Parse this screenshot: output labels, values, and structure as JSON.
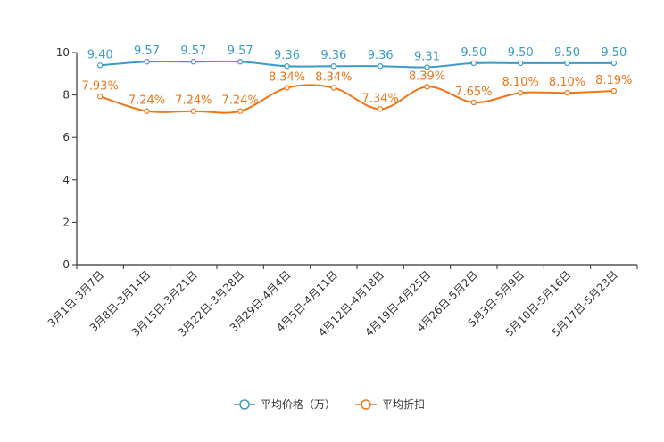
{
  "chart_data": {
    "type": "line",
    "title": "",
    "xlabel": "",
    "ylabel": "",
    "ylim": [
      0,
      10
    ],
    "yticks": [
      0,
      2,
      4,
      6,
      8,
      10
    ],
    "categories": [
      "3月1日-3月7日",
      "3月8日-3月14日",
      "3月15日-3月21日",
      "3月22日-3月28日",
      "3月29日-4月4日",
      "4月5日-4月11日",
      "4月12日-4月18日",
      "4月19日-4月25日",
      "4月26日-5月2日",
      "5月3日-5月9日",
      "5月10日-5月16日",
      "5月17日-5月23日"
    ],
    "series": [
      {
        "name": "平均价格（万）",
        "color": "#3a9bc8",
        "values": [
          9.4,
          9.57,
          9.57,
          9.57,
          9.36,
          9.36,
          9.36,
          9.31,
          9.5,
          9.5,
          9.5,
          9.5
        ],
        "labels": [
          "9.40",
          "9.57",
          "9.57",
          "9.57",
          "9.36",
          "9.36",
          "9.36",
          "9.31",
          "9.50",
          "9.50",
          "9.50",
          "9.50"
        ]
      },
      {
        "name": "平均折扣",
        "color": "#f07518",
        "values": [
          7.93,
          7.24,
          7.24,
          7.24,
          8.34,
          8.34,
          7.34,
          8.39,
          7.65,
          8.1,
          8.1,
          8.19
        ],
        "labels": [
          "7.93%",
          "7.24%",
          "7.24%",
          "7.24%",
          "8.34%",
          "8.34%",
          "7.34%",
          "8.39%",
          "7.65%",
          "8.10%",
          "8.10%",
          "8.19%"
        ]
      }
    ],
    "legend_position": "bottom-center",
    "grid": false
  }
}
